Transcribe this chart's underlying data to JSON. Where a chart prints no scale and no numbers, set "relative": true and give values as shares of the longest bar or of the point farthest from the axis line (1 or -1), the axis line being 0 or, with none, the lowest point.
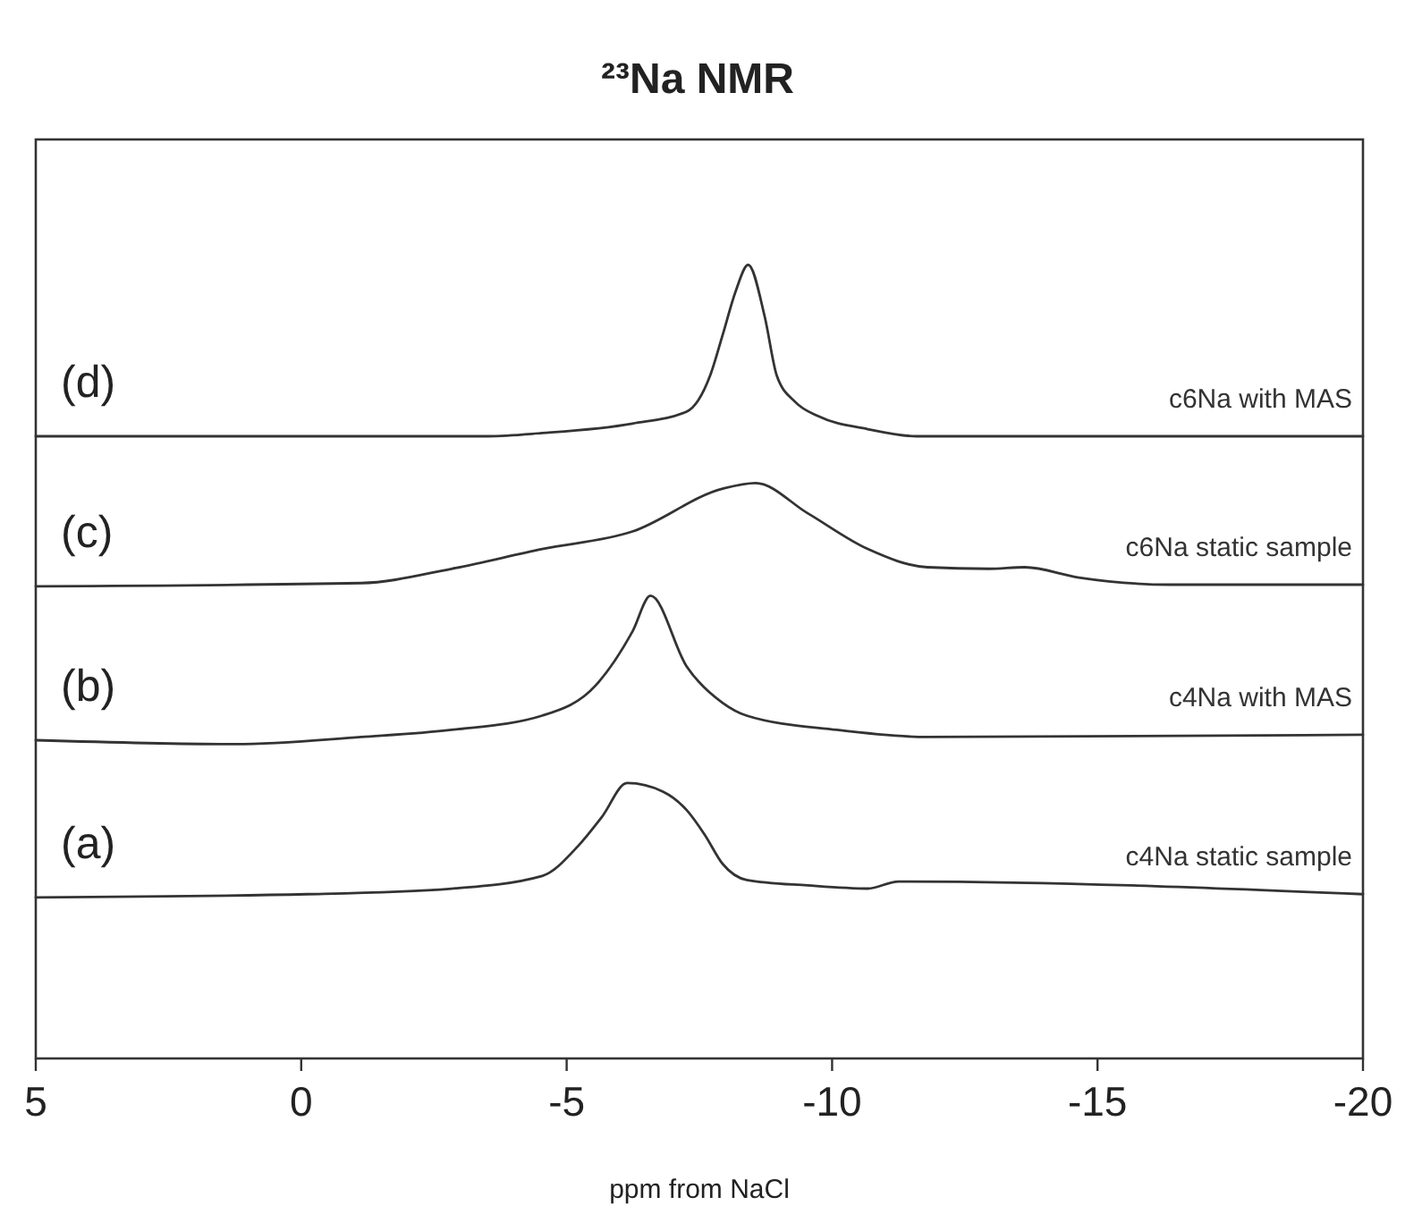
{
  "chart_data": {
    "type": "line",
    "title": "²³Na NMR",
    "xlabel": "ppm from NaCl",
    "relative": true,
    "xlim": [
      5,
      -20
    ],
    "xticks": [
      5,
      0,
      -5,
      -10,
      -15,
      -20
    ],
    "grid": false,
    "legend": false,
    "marker": "none",
    "line_style": "solid",
    "series": [
      {
        "name": "c6Na with MAS",
        "color": "#333333",
        "x": [
          5,
          -3.52,
          -4.54,
          -6.24,
          -7.26,
          -7.7,
          -7.94,
          -8.18,
          -8.42,
          -8.73,
          -8.96,
          -9.31,
          -9.75,
          -10.67,
          -11.59,
          -20
        ],
        "values": [
          0.784,
          0.784,
          0.788,
          0.8,
          0.815,
          0.86,
          0.912,
          0.966,
          1,
          0.935,
          0.86,
          0.827,
          0.809,
          0.793,
          0.784,
          0.784
        ]
      },
      {
        "name": "c6Na static sample",
        "color": "#333333",
        "x": [
          5,
          -1.13,
          -2.83,
          -4.54,
          -6.24,
          -7.94,
          -8.56,
          -9.54,
          -10.67,
          -11.79,
          -12.95,
          -13.63,
          -14.65,
          -16.36,
          -20
        ],
        "values": [
          0.595,
          0.599,
          0.617,
          0.642,
          0.664,
          0.718,
          0.725,
          0.687,
          0.642,
          0.619,
          0.617,
          0.619,
          0.606,
          0.597,
          0.597
        ]
      },
      {
        "name": "c4Na with MAS",
        "color": "#333333",
        "x": [
          5,
          1.25,
          -1.13,
          -2.83,
          -4.54,
          -5.56,
          -6.24,
          -6.58,
          -7.26,
          -7.94,
          -8.39,
          -10.09,
          -11.79,
          -20
        ],
        "values": [
          0.401,
          0.396,
          0.405,
          0.414,
          0.432,
          0.471,
          0.538,
          0.583,
          0.494,
          0.448,
          0.432,
          0.414,
          0.405,
          0.408
        ]
      },
      {
        "name": "c4Na static sample",
        "color": "#333333",
        "x": [
          5,
          -0.11,
          -2.83,
          -4.54,
          -5.22,
          -5.66,
          -6.14,
          -6.82,
          -7.26,
          -7.6,
          -7.94,
          -8.39,
          -9.54,
          -10.67,
          -11.25,
          -20
        ],
        "values": [
          0.203,
          0.207,
          0.214,
          0.23,
          0.268,
          0.304,
          0.347,
          0.336,
          0.313,
          0.282,
          0.245,
          0.225,
          0.218,
          0.214,
          0.223,
          0.207
        ]
      }
    ],
    "annotations": [
      "(d)",
      "(c)",
      "(b)",
      "(a)"
    ]
  }
}
